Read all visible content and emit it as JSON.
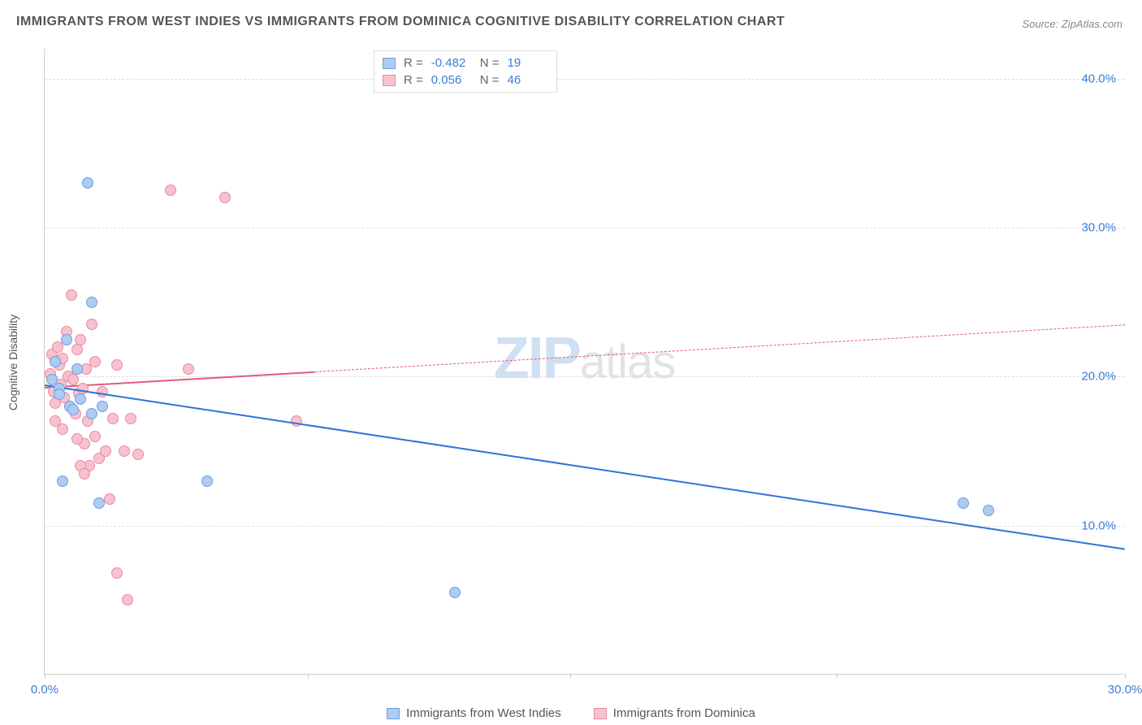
{
  "title": "IMMIGRANTS FROM WEST INDIES VS IMMIGRANTS FROM DOMINICA COGNITIVE DISABILITY CORRELATION CHART",
  "source": "Source: ZipAtlas.com",
  "ylabel": "Cognitive Disability",
  "watermark_zip": "ZIP",
  "watermark_atlas": "atlas",
  "chart": {
    "type": "scatter",
    "xlim": [
      0,
      30
    ],
    "ylim": [
      0,
      42
    ],
    "xtick_positions": [
      0,
      7.3,
      14.6,
      22.0,
      30.0
    ],
    "xtick_labels": [
      "0.0%",
      "",
      "",
      "",
      "30.0%"
    ],
    "ytick_positions": [
      10,
      20,
      30,
      40
    ],
    "ytick_labels": [
      "10.0%",
      "20.0%",
      "30.0%",
      "40.0%"
    ],
    "background_color": "#ffffff",
    "grid_color": "#dddddd",
    "axis_color": "#cccccc"
  },
  "series": [
    {
      "name": "Immigrants from West Indies",
      "color_fill": "#aecbf0",
      "color_stroke": "#6b9fe0",
      "trend_color": "#2f73d6",
      "marker_radius": 7,
      "R": "-0.482",
      "N": "19",
      "trend": {
        "x1": 0,
        "y1": 19.5,
        "x2": 30,
        "y2": 8.5,
        "solid_until_x": 30
      },
      "points": [
        [
          0.2,
          19.8
        ],
        [
          0.3,
          21.0
        ],
        [
          0.4,
          19.2
        ],
        [
          0.6,
          22.5
        ],
        [
          0.7,
          18.0
        ],
        [
          0.8,
          17.8
        ],
        [
          1.2,
          33.0
        ],
        [
          1.3,
          25.0
        ],
        [
          1.6,
          18.0
        ],
        [
          1.5,
          11.5
        ],
        [
          4.5,
          13.0
        ],
        [
          11.4,
          5.5
        ],
        [
          25.5,
          11.5
        ],
        [
          26.2,
          11.0
        ],
        [
          0.5,
          13.0
        ],
        [
          0.9,
          20.5
        ],
        [
          0.4,
          18.8
        ],
        [
          1.0,
          18.5
        ],
        [
          1.3,
          17.5
        ]
      ]
    },
    {
      "name": "Immigrants from Dominica",
      "color_fill": "#f7c2ce",
      "color_stroke": "#e88ba1",
      "trend_color": "#e35a7c",
      "marker_radius": 7,
      "R": "0.056",
      "N": "46",
      "trend": {
        "x1": 0,
        "y1": 19.3,
        "x2": 30,
        "y2": 23.5,
        "solid_until_x": 7.5
      },
      "points": [
        [
          0.15,
          20.2
        ],
        [
          0.2,
          21.5
        ],
        [
          0.25,
          19.0
        ],
        [
          0.3,
          18.2
        ],
        [
          0.35,
          22.0
        ],
        [
          0.4,
          20.8
        ],
        [
          0.45,
          19.5
        ],
        [
          0.5,
          21.2
        ],
        [
          0.55,
          18.6
        ],
        [
          0.6,
          23.0
        ],
        [
          0.65,
          20.0
        ],
        [
          0.7,
          18.0
        ],
        [
          0.75,
          25.5
        ],
        [
          0.8,
          19.8
        ],
        [
          0.85,
          17.5
        ],
        [
          0.9,
          21.8
        ],
        [
          0.95,
          18.9
        ],
        [
          1.0,
          22.5
        ],
        [
          1.05,
          19.2
        ],
        [
          1.1,
          15.5
        ],
        [
          1.15,
          20.5
        ],
        [
          1.2,
          17.0
        ],
        [
          1.25,
          14.0
        ],
        [
          1.3,
          23.5
        ],
        [
          1.4,
          16.0
        ],
        [
          1.5,
          14.5
        ],
        [
          1.6,
          19.0
        ],
        [
          1.7,
          15.0
        ],
        [
          1.8,
          11.8
        ],
        [
          1.9,
          17.2
        ],
        [
          2.0,
          6.8
        ],
        [
          2.2,
          15.0
        ],
        [
          2.3,
          5.0
        ],
        [
          2.4,
          17.2
        ],
        [
          2.6,
          14.8
        ],
        [
          2.0,
          20.8
        ],
        [
          3.5,
          32.5
        ],
        [
          4.0,
          20.5
        ],
        [
          5.0,
          32.0
        ],
        [
          7.0,
          17.0
        ],
        [
          1.0,
          14.0
        ],
        [
          0.9,
          15.8
        ],
        [
          1.1,
          13.5
        ],
        [
          0.5,
          16.5
        ],
        [
          0.3,
          17.0
        ],
        [
          1.4,
          21.0
        ]
      ]
    }
  ],
  "legend": {
    "r_label": "R =",
    "n_label": "N ="
  }
}
